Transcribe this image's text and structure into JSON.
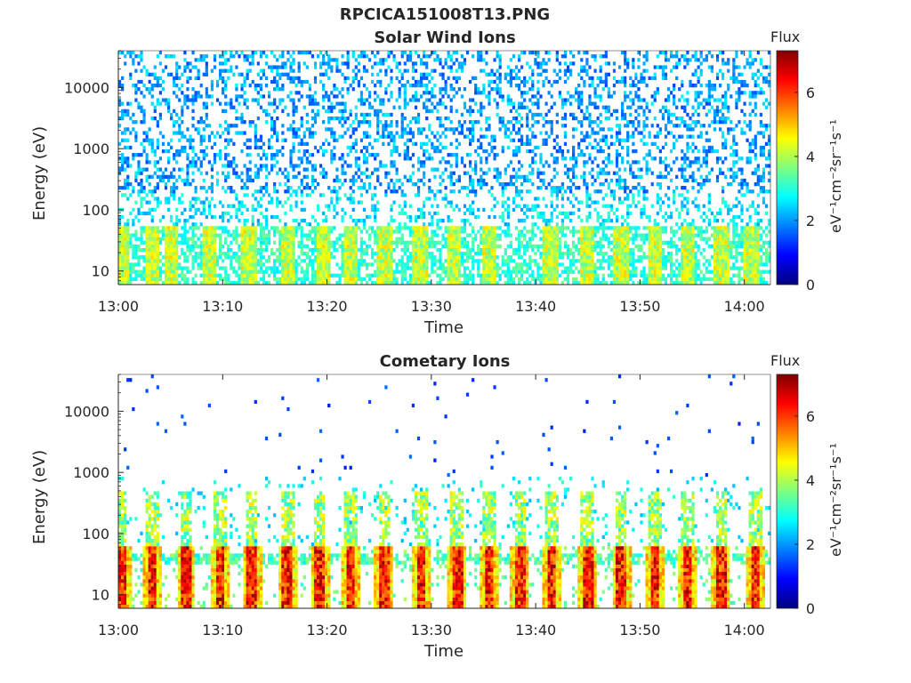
{
  "figure": {
    "title": "RPCICA151008T13.PNG",
    "colorbar_label": "Flux",
    "colorbar_unit": "eV⁻¹cm⁻²sr⁻¹s⁻¹"
  },
  "colors": {
    "colormap": [
      "#00007f",
      "#0000ff",
      "#007fff",
      "#00ffff",
      "#7fff7f",
      "#ffff00",
      "#ff7f00",
      "#ff0000",
      "#7f0000"
    ]
  },
  "chart_data": [
    {
      "type": "heatmap",
      "title": "Solar Wind Ions",
      "xlabel": "Time",
      "ylabel": "Energy (eV)",
      "x_ticks": [
        "13:00",
        "13:10",
        "13:20",
        "13:30",
        "13:40",
        "13:50",
        "14:00"
      ],
      "y_ticks": [
        "10",
        "100",
        "1000",
        "10000"
      ],
      "y_scale": "log",
      "y_range": [
        6,
        40000
      ],
      "x_range_minutes": [
        0,
        62.5
      ],
      "colorbar_ticks": [
        "0",
        "2",
        "4",
        "6"
      ],
      "colorbar_range": [
        0,
        7.3
      ],
      "enhancement_times_minutes": [
        0.3,
        3.3,
        5.0,
        8.8,
        12.5,
        16.2,
        19.6,
        22.2,
        25.5,
        28.9,
        32.2,
        35.5,
        41.4,
        45.0,
        48.2,
        51.5,
        54.5,
        57.8,
        60.7
      ],
      "description_bands": {
        "high_energy_level": "2-3 (scattered, 200-20000 eV)",
        "low_energy_level": "3-5 (below ~60 eV)"
      }
    },
    {
      "type": "heatmap",
      "title": "Cometary Ions",
      "xlabel": "Time",
      "ylabel": "Energy (eV)",
      "x_ticks": [
        "13:00",
        "13:10",
        "13:20",
        "13:30",
        "13:40",
        "13:50",
        "14:00"
      ],
      "y_ticks": [
        "10",
        "100",
        "1000",
        "10000"
      ],
      "y_scale": "log",
      "y_range": [
        6,
        40000
      ],
      "x_range_minutes": [
        0,
        62.5
      ],
      "colorbar_ticks": [
        "0",
        "2",
        "4",
        "6"
      ],
      "colorbar_range": [
        0,
        7.3
      ],
      "enhancement_times_minutes": [
        0.3,
        3.3,
        6.5,
        9.8,
        12.8,
        16.2,
        19.3,
        22.2,
        25.5,
        29.0,
        32.5,
        35.5,
        38.5,
        41.5,
        45.0,
        48.2,
        51.5,
        54.5,
        57.8,
        61.0
      ],
      "description_bands": {
        "core_level": "5-7 (10-60 eV)",
        "upper_level": "3-5 (60-500 eV)"
      }
    }
  ]
}
